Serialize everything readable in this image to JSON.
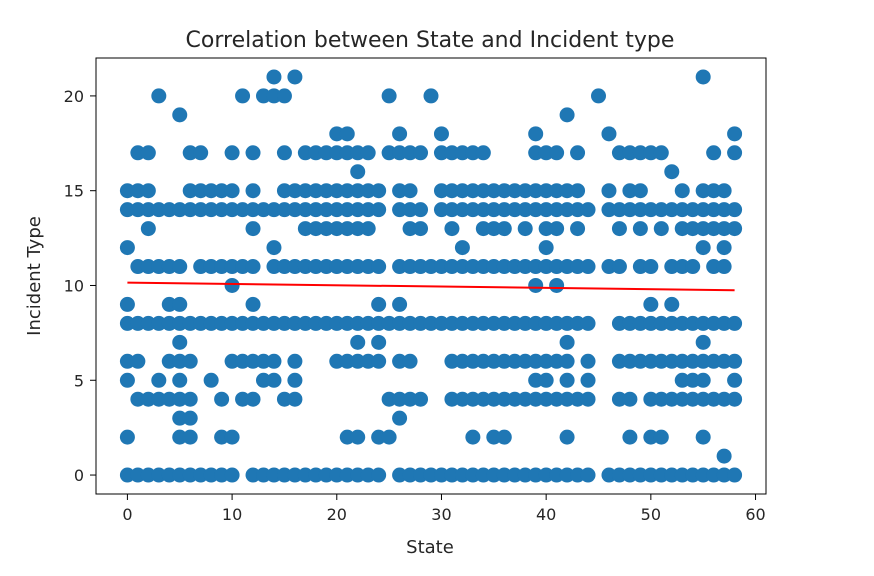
{
  "chart_data": {
    "type": "scatter",
    "title": "Correlation between State and Incident type",
    "xlabel": "State",
    "ylabel": "Incident Type",
    "xlim": [
      -3,
      61
    ],
    "ylim": [
      -1,
      22
    ],
    "x_ticks": [
      0,
      10,
      20,
      30,
      40,
      50,
      60
    ],
    "y_ticks": [
      0,
      5,
      10,
      15,
      20
    ],
    "grid": false,
    "legend": "none",
    "point_color": "#1f77b4",
    "trend_color": "#ff0000",
    "trend_line": {
      "x": [
        0,
        58
      ],
      "y": [
        10.15,
        9.75
      ]
    },
    "series": [
      {
        "rows": [
          {
            "y": 0,
            "x": [
              0,
              1,
              2,
              3,
              4,
              5,
              6,
              7,
              8,
              9,
              10,
              12,
              13,
              14,
              15,
              16,
              17,
              18,
              19,
              20,
              21,
              22,
              23,
              24,
              26,
              27,
              28,
              29,
              30,
              31,
              32,
              33,
              34,
              35,
              36,
              37,
              38,
              39,
              40,
              41,
              42,
              43,
              44,
              46,
              47,
              48,
              49,
              50,
              51,
              52,
              53,
              54,
              55,
              56,
              57,
              58
            ]
          },
          {
            "y": 1,
            "x": [
              57
            ]
          },
          {
            "y": 2,
            "x": [
              0,
              5,
              6,
              9,
              10,
              21,
              22,
              24,
              25,
              33,
              35,
              36,
              42,
              48,
              50,
              51,
              55
            ]
          },
          {
            "y": 3,
            "x": [
              5,
              6,
              26
            ]
          },
          {
            "y": 4,
            "x": [
              1,
              2,
              3,
              4,
              5,
              6,
              9,
              11,
              12,
              15,
              16,
              25,
              26,
              27,
              28,
              31,
              32,
              33,
              34,
              35,
              36,
              37,
              38,
              39,
              40,
              41,
              42,
              43,
              44,
              47,
              48,
              50,
              51,
              52,
              53,
              54,
              55,
              56,
              57,
              58
            ]
          },
          {
            "y": 5,
            "x": [
              0,
              3,
              5,
              8,
              13,
              14,
              16,
              39,
              40,
              42,
              44,
              53,
              54,
              55,
              58
            ]
          },
          {
            "y": 6,
            "x": [
              0,
              1,
              4,
              5,
              6,
              10,
              11,
              12,
              13,
              14,
              16,
              20,
              21,
              22,
              23,
              24,
              26,
              27,
              31,
              32,
              33,
              34,
              35,
              36,
              37,
              38,
              39,
              40,
              41,
              42,
              44,
              47,
              48,
              49,
              50,
              51,
              52,
              53,
              54,
              55,
              56,
              57,
              58
            ]
          },
          {
            "y": 7,
            "x": [
              5,
              22,
              24,
              42,
              55
            ]
          },
          {
            "y": 8,
            "x": [
              0,
              1,
              2,
              3,
              4,
              5,
              6,
              7,
              8,
              9,
              10,
              11,
              12,
              13,
              14,
              15,
              16,
              17,
              18,
              19,
              20,
              21,
              22,
              23,
              24,
              25,
              26,
              27,
              28,
              29,
              30,
              31,
              32,
              33,
              34,
              35,
              36,
              37,
              38,
              39,
              40,
              41,
              42,
              43,
              44,
              47,
              48,
              49,
              50,
              51,
              52,
              53,
              54,
              55,
              56,
              57,
              58
            ]
          },
          {
            "y": 9,
            "x": [
              0,
              4,
              5,
              12,
              24,
              26,
              50,
              52
            ]
          },
          {
            "y": 10,
            "x": [
              10,
              39,
              41
            ]
          },
          {
            "y": 11,
            "x": [
              1,
              2,
              3,
              4,
              5,
              7,
              8,
              9,
              10,
              11,
              12,
              14,
              15,
              16,
              17,
              18,
              19,
              20,
              21,
              22,
              23,
              24,
              26,
              27,
              28,
              29,
              30,
              31,
              32,
              33,
              34,
              35,
              36,
              37,
              38,
              39,
              40,
              41,
              42,
              43,
              44,
              46,
              47,
              49,
              50,
              52,
              53,
              54,
              56,
              57
            ]
          },
          {
            "y": 12,
            "x": [
              0,
              14,
              32,
              40,
              55,
              57
            ]
          },
          {
            "y": 13,
            "x": [
              2,
              12,
              17,
              18,
              19,
              20,
              21,
              22,
              23,
              27,
              28,
              31,
              34,
              35,
              36,
              38,
              40,
              41,
              43,
              47,
              49,
              51,
              53,
              54,
              55,
              56,
              57,
              58
            ]
          },
          {
            "y": 14,
            "x": [
              0,
              1,
              2,
              3,
              4,
              5,
              6,
              7,
              8,
              9,
              10,
              11,
              12,
              13,
              14,
              15,
              16,
              17,
              18,
              19,
              20,
              21,
              22,
              23,
              24,
              26,
              27,
              28,
              30,
              31,
              32,
              33,
              34,
              35,
              36,
              37,
              38,
              39,
              40,
              41,
              42,
              43,
              44,
              46,
              47,
              48,
              49,
              50,
              51,
              52,
              53,
              54,
              55,
              56,
              57,
              58
            ]
          },
          {
            "y": 15,
            "x": [
              0,
              1,
              2,
              6,
              7,
              8,
              9,
              10,
              12,
              15,
              16,
              17,
              18,
              19,
              20,
              21,
              22,
              23,
              24,
              26,
              27,
              30,
              31,
              32,
              33,
              34,
              35,
              36,
              37,
              38,
              39,
              40,
              41,
              42,
              43,
              46,
              48,
              49,
              53,
              55,
              56,
              57
            ]
          },
          {
            "y": 16,
            "x": [
              22,
              52
            ]
          },
          {
            "y": 17,
            "x": [
              1,
              2,
              6,
              7,
              10,
              12,
              15,
              17,
              18,
              19,
              20,
              21,
              22,
              23,
              25,
              26,
              27,
              28,
              30,
              31,
              32,
              33,
              34,
              39,
              40,
              41,
              43,
              47,
              48,
              49,
              50,
              51,
              56,
              58
            ]
          },
          {
            "y": 18,
            "x": [
              20,
              21,
              26,
              30,
              39,
              46,
              58
            ]
          },
          {
            "y": 19,
            "x": [
              5,
              42
            ]
          },
          {
            "y": 20,
            "x": [
              3,
              11,
              13,
              14,
              15,
              25,
              29,
              45
            ]
          },
          {
            "y": 21,
            "x": [
              14,
              16,
              55
            ]
          }
        ]
      }
    ]
  }
}
